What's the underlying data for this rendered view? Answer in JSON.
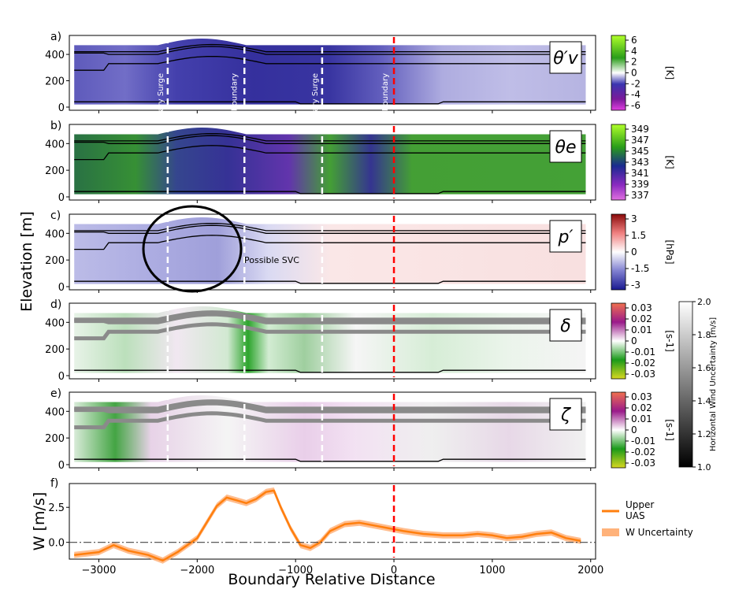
{
  "figure": {
    "ylabel": "Elevation [m]",
    "xlabel": "Boundary Relative Distance",
    "boundary_labels": [
      "Tertiary Surge",
      "Internal Convergence Boundary",
      "Secondary Surge",
      "Lead Boundary"
    ],
    "annotation_svc": "Possible SVC"
  },
  "chart_data": [
    {
      "panel": "a)",
      "type": "heatmap",
      "symbol": "θ′v",
      "colorbar": {
        "ticks": [
          "6",
          "4",
          "2",
          "0",
          "-2",
          "-4",
          "-6"
        ],
        "unit": "[K]",
        "colors": [
          "#b0ff2a",
          "#2a9d1a",
          "#ffffff",
          "#3a35b0",
          "#7a1a9a",
          "#e040e0"
        ]
      },
      "yticks": [
        "0",
        "200",
        "400"
      ]
    },
    {
      "panel": "b)",
      "type": "heatmap",
      "symbol": "θe",
      "colorbar": {
        "ticks": [
          "349",
          "347",
          "345",
          "343",
          "341",
          "339",
          "337"
        ],
        "unit": "[K]",
        "colors": [
          "#b0ff2a",
          "#2a9d1a",
          "#1a2a90",
          "#8a2ac0",
          "#e070e0"
        ]
      },
      "yticks": [
        "0",
        "200",
        "400"
      ]
    },
    {
      "panel": "c)",
      "type": "heatmap",
      "symbol": "p′",
      "colorbar": {
        "ticks": [
          "3",
          "1.5",
          "0",
          "-1.5",
          "-3"
        ],
        "unit": "[hPa]",
        "colors": [
          "#8a0a0a",
          "#f08080",
          "#ffffff",
          "#8080d0",
          "#1a1a90"
        ]
      },
      "yticks": [
        "0",
        "200",
        "400"
      ]
    },
    {
      "panel": "d)",
      "type": "heatmap",
      "symbol": "δ",
      "colorbar": {
        "ticks": [
          "0.03",
          "0.02",
          "0.01",
          "0",
          "-0.01",
          "-0.02",
          "-0.03"
        ],
        "unit": "[s-1]",
        "colors": [
          "#f07050",
          "#9a1a8a",
          "#ffffff",
          "#1a9a1a",
          "#d8d820"
        ]
      },
      "yticks": [
        "0",
        "200",
        "400"
      ]
    },
    {
      "panel": "e)",
      "type": "heatmap",
      "symbol": "ζ",
      "colorbar": {
        "ticks": [
          "0.03",
          "0.02",
          "0.01",
          "0",
          "-0.01",
          "-0.02",
          "-0.03"
        ],
        "unit": "[s-1]",
        "colors": [
          "#f07050",
          "#9a1a8a",
          "#ffffff",
          "#1a9a1a",
          "#d8d820"
        ]
      },
      "yticks": [
        "0",
        "200",
        "400"
      ]
    },
    {
      "panel": "f)",
      "type": "line",
      "ylabel": "W [m/s]",
      "yticks": [
        "0.0",
        "2.5"
      ],
      "ylim": [
        -1.2,
        4.2
      ],
      "xlim": [
        -3300,
        2050
      ],
      "xticks": [
        -3000,
        -2000,
        -1000,
        0,
        1000,
        2000
      ],
      "xtick_labels": [
        "−3000",
        "−2000",
        "−1000",
        "0",
        "1000",
        "2000"
      ],
      "series": [
        {
          "name": "Upper UAS",
          "color": "#ff7f0e",
          "x": [
            -3250,
            -3000,
            -2850,
            -2700,
            -2500,
            -2350,
            -2200,
            -2000,
            -1800,
            -1700,
            -1600,
            -1500,
            -1400,
            -1300,
            -1220,
            -1150,
            -1050,
            -950,
            -850,
            -750,
            -650,
            -500,
            -350,
            -200,
            -50,
            100,
            300,
            500,
            700,
            850,
            1000,
            1150,
            1300,
            1450,
            1600,
            1750,
            1900
          ],
          "y": [
            -0.9,
            -0.7,
            -0.2,
            -0.6,
            -0.9,
            -1.3,
            -0.7,
            0.3,
            2.6,
            3.2,
            3.0,
            2.8,
            3.1,
            3.6,
            3.7,
            2.5,
            1.0,
            -0.2,
            -0.4,
            0.0,
            0.8,
            1.3,
            1.4,
            1.2,
            1.0,
            0.8,
            0.6,
            0.5,
            0.5,
            0.6,
            0.5,
            0.3,
            0.4,
            0.6,
            0.7,
            0.3,
            0.1
          ]
        },
        {
          "name": "W Uncertainty",
          "color": "#ffb27a",
          "band_halfwidth": 0.22
        }
      ],
      "hline": 0.0
    }
  ],
  "colorbar_gray": {
    "label": "Horizontal Wind Uncertainty [m/s]",
    "ticks": [
      "2.0",
      "1.8",
      "1.6",
      "1.4",
      "1.2",
      "1.0"
    ]
  },
  "legend": {
    "items": [
      "Upper UAS",
      "W Uncertainty"
    ]
  }
}
